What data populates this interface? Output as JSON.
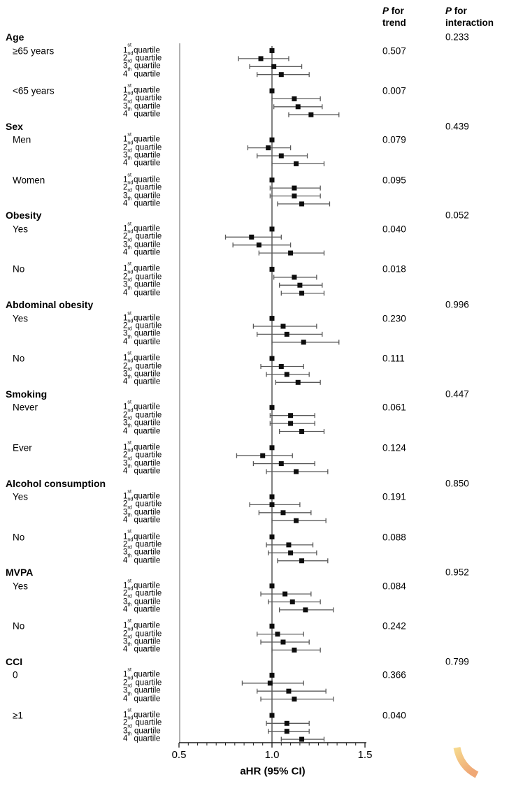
{
  "columns": {
    "trend": {
      "p": "P",
      "rest": " for",
      "line2": "trend"
    },
    "interaction": {
      "p": "P",
      "rest": " for",
      "line2": "interaction"
    }
  },
  "watermark": {
    "shape": "curved-swoosh",
    "color_top": "#f6d98e",
    "color_bottom": "#efa876"
  },
  "chart_data": {
    "type": "forest",
    "xlabel": "aHR (95% CI)",
    "x_ticks": [
      "0.5",
      "1.0",
      "1.5"
    ],
    "x_minor_step": 0.05,
    "xlim": [
      0.5,
      1.5
    ],
    "reference_value": 1.0,
    "colors": {
      "text": "#000000",
      "ci_line": "#595959",
      "marker": "#0d0d0d",
      "ref_line": "#4d4d4d",
      "spine": "#666666",
      "axis": "#1a1a1a"
    },
    "groups": [
      {
        "name": "Age",
        "p_interaction": "0.233",
        "subgroups": [
          {
            "name": "≥65 years",
            "p_trend": "0.507",
            "rows": [
              {
                "label": "1st quartile",
                "est": 1.0,
                "ref": true
              },
              {
                "label": "2nd quartile",
                "est": 0.94,
                "lo": 0.82,
                "hi": 1.09
              },
              {
                "label": "3rd quartile",
                "est": 1.01,
                "lo": 0.88,
                "hi": 1.16
              },
              {
                "label": "4th quartile",
                "est": 1.05,
                "lo": 0.92,
                "hi": 1.2
              }
            ]
          },
          {
            "name": "<65 years",
            "p_trend": "0.007",
            "rows": [
              {
                "label": "1st quartile",
                "est": 1.0,
                "ref": true
              },
              {
                "label": "2nd quartile",
                "est": 1.12,
                "lo": 1.0,
                "hi": 1.26
              },
              {
                "label": "3rd quartile",
                "est": 1.14,
                "lo": 1.01,
                "hi": 1.27
              },
              {
                "label": "4th quartile",
                "est": 1.21,
                "lo": 1.09,
                "hi": 1.36
              }
            ]
          }
        ]
      },
      {
        "name": "Sex",
        "p_interaction": "0.439",
        "subgroups": [
          {
            "name": "Men",
            "p_trend": "0.079",
            "rows": [
              {
                "label": "1st quartile",
                "est": 1.0,
                "ref": true
              },
              {
                "label": "2nd quartile",
                "est": 0.98,
                "lo": 0.87,
                "hi": 1.1
              },
              {
                "label": "3rd quartile",
                "est": 1.05,
                "lo": 0.92,
                "hi": 1.19
              },
              {
                "label": "4th quartile",
                "est": 1.13,
                "lo": 1.0,
                "hi": 1.28
              }
            ]
          },
          {
            "name": "Women",
            "p_trend": "0.095",
            "rows": [
              {
                "label": "1st quartile",
                "est": 1.0,
                "ref": true
              },
              {
                "label": "2nd quartile",
                "est": 1.12,
                "lo": 0.99,
                "hi": 1.26
              },
              {
                "label": "3rd quartile",
                "est": 1.12,
                "lo": 0.99,
                "hi": 1.26
              },
              {
                "label": "4th quartile",
                "est": 1.16,
                "lo": 1.03,
                "hi": 1.31
              }
            ]
          }
        ]
      },
      {
        "name": "Obesity",
        "p_interaction": "0.052",
        "subgroups": [
          {
            "name": "Yes",
            "p_trend": "0.040",
            "rows": [
              {
                "label": "1st quartile",
                "est": 1.0,
                "ref": true
              },
              {
                "label": "2nd quartile",
                "est": 0.89,
                "lo": 0.75,
                "hi": 1.05
              },
              {
                "label": "3rd quartile",
                "est": 0.93,
                "lo": 0.79,
                "hi": 1.1
              },
              {
                "label": "4th quartile",
                "est": 1.1,
                "lo": 0.93,
                "hi": 1.28
              }
            ]
          },
          {
            "name": "No",
            "p_trend": "0.018",
            "rows": [
              {
                "label": "1st quartile",
                "est": 1.0,
                "ref": true
              },
              {
                "label": "2nd quartile",
                "est": 1.12,
                "lo": 1.01,
                "hi": 1.24
              },
              {
                "label": "3rd quartile",
                "est": 1.15,
                "lo": 1.04,
                "hi": 1.27
              },
              {
                "label": "4th quartile",
                "est": 1.16,
                "lo": 1.05,
                "hi": 1.28
              }
            ]
          }
        ]
      },
      {
        "name": "Abdominal obesity",
        "p_interaction": "0.996",
        "subgroups": [
          {
            "name": "Yes",
            "p_trend": "0.230",
            "rows": [
              {
                "label": "1st quartile",
                "est": 1.0,
                "ref": true
              },
              {
                "label": "2nd quartile",
                "est": 1.06,
                "lo": 0.9,
                "hi": 1.24
              },
              {
                "label": "3rd quartile",
                "est": 1.08,
                "lo": 0.92,
                "hi": 1.27
              },
              {
                "label": "4th quartile",
                "est": 1.17,
                "lo": 1.0,
                "hi": 1.36
              }
            ]
          },
          {
            "name": "No",
            "p_trend": "0.111",
            "rows": [
              {
                "label": "1st quartile",
                "est": 1.0,
                "ref": true
              },
              {
                "label": "2nd quartile",
                "est": 1.05,
                "lo": 0.94,
                "hi": 1.17
              },
              {
                "label": "3rd quartile",
                "est": 1.08,
                "lo": 0.97,
                "hi": 1.2
              },
              {
                "label": "4th quartile",
                "est": 1.14,
                "lo": 1.02,
                "hi": 1.26
              }
            ]
          }
        ]
      },
      {
        "name": "Smoking",
        "p_interaction": "0.447",
        "subgroups": [
          {
            "name": "Never",
            "p_trend": "0.061",
            "rows": [
              {
                "label": "1st quartile",
                "est": 1.0,
                "ref": true
              },
              {
                "label": "2nd quartile",
                "est": 1.1,
                "lo": 0.99,
                "hi": 1.23
              },
              {
                "label": "3rd quartile",
                "est": 1.1,
                "lo": 0.99,
                "hi": 1.23
              },
              {
                "label": "4th quartile",
                "est": 1.16,
                "lo": 1.04,
                "hi": 1.28
              }
            ]
          },
          {
            "name": "Ever",
            "p_trend": "0.124",
            "rows": [
              {
                "label": "1st quartile",
                "est": 1.0,
                "ref": true
              },
              {
                "label": "2nd quartile",
                "est": 0.95,
                "lo": 0.81,
                "hi": 1.11
              },
              {
                "label": "3rd quartile",
                "est": 1.05,
                "lo": 0.9,
                "hi": 1.23
              },
              {
                "label": "4th quartile",
                "est": 1.13,
                "lo": 0.97,
                "hi": 1.3
              }
            ]
          }
        ]
      },
      {
        "name": "Alcohol consumption",
        "p_interaction": "0.850",
        "subgroups": [
          {
            "name": "Yes",
            "p_trend": "0.191",
            "rows": [
              {
                "label": "1st quartile",
                "est": 1.0,
                "ref": true
              },
              {
                "label": "2nd quartile",
                "est": 1.0,
                "lo": 0.88,
                "hi": 1.15
              },
              {
                "label": "3rd quartile",
                "est": 1.06,
                "lo": 0.93,
                "hi": 1.21
              },
              {
                "label": "4th quartile",
                "est": 1.13,
                "lo": 1.0,
                "hi": 1.29
              }
            ]
          },
          {
            "name": "No",
            "p_trend": "0.088",
            "rows": [
              {
                "label": "1st quartile",
                "est": 1.0,
                "ref": true
              },
              {
                "label": "2nd quartile",
                "est": 1.09,
                "lo": 0.97,
                "hi": 1.22
              },
              {
                "label": "3rd quartile",
                "est": 1.1,
                "lo": 0.98,
                "hi": 1.24
              },
              {
                "label": "4th quartile",
                "est": 1.16,
                "lo": 1.03,
                "hi": 1.3
              }
            ]
          }
        ]
      },
      {
        "name": "MVPA",
        "p_interaction": "0.952",
        "subgroups": [
          {
            "name": "Yes",
            "p_trend": "0.084",
            "rows": [
              {
                "label": "1st quartile",
                "est": 1.0,
                "ref": true
              },
              {
                "label": "2nd quartile",
                "est": 1.07,
                "lo": 0.94,
                "hi": 1.21
              },
              {
                "label": "3rd quartile",
                "est": 1.11,
                "lo": 0.98,
                "hi": 1.26
              },
              {
                "label": "4th quartile",
                "est": 1.18,
                "lo": 1.04,
                "hi": 1.33
              }
            ]
          },
          {
            "name": "No",
            "p_trend": "0.242",
            "rows": [
              {
                "label": "1st quartile",
                "est": 1.0,
                "ref": true
              },
              {
                "label": "2nd quartile",
                "est": 1.03,
                "lo": 0.92,
                "hi": 1.17
              },
              {
                "label": "3rd quartile",
                "est": 1.06,
                "lo": 0.94,
                "hi": 1.2
              },
              {
                "label": "4th quartile",
                "est": 1.12,
                "lo": 1.0,
                "hi": 1.26
              }
            ]
          }
        ]
      },
      {
        "name": "CCI",
        "p_interaction": "0.799",
        "subgroups": [
          {
            "name": "0",
            "p_trend": "0.366",
            "rows": [
              {
                "label": "1st quartile",
                "est": 1.0,
                "ref": true
              },
              {
                "label": "2nd quartile",
                "est": 0.99,
                "lo": 0.84,
                "hi": 1.17
              },
              {
                "label": "3rd quartile",
                "est": 1.09,
                "lo": 0.92,
                "hi": 1.29
              },
              {
                "label": "4th quartile",
                "est": 1.12,
                "lo": 0.94,
                "hi": 1.33
              }
            ]
          },
          {
            "name": "≥1",
            "p_trend": "0.040",
            "rows": [
              {
                "label": "1st quartile",
                "est": 1.0,
                "ref": true
              },
              {
                "label": "2nd quartile",
                "est": 1.08,
                "lo": 0.97,
                "hi": 1.2
              },
              {
                "label": "3rd quartile",
                "est": 1.08,
                "lo": 0.98,
                "hi": 1.2
              },
              {
                "label": "4th quartile",
                "est": 1.16,
                "lo": 1.05,
                "hi": 1.28
              }
            ]
          }
        ]
      }
    ]
  }
}
